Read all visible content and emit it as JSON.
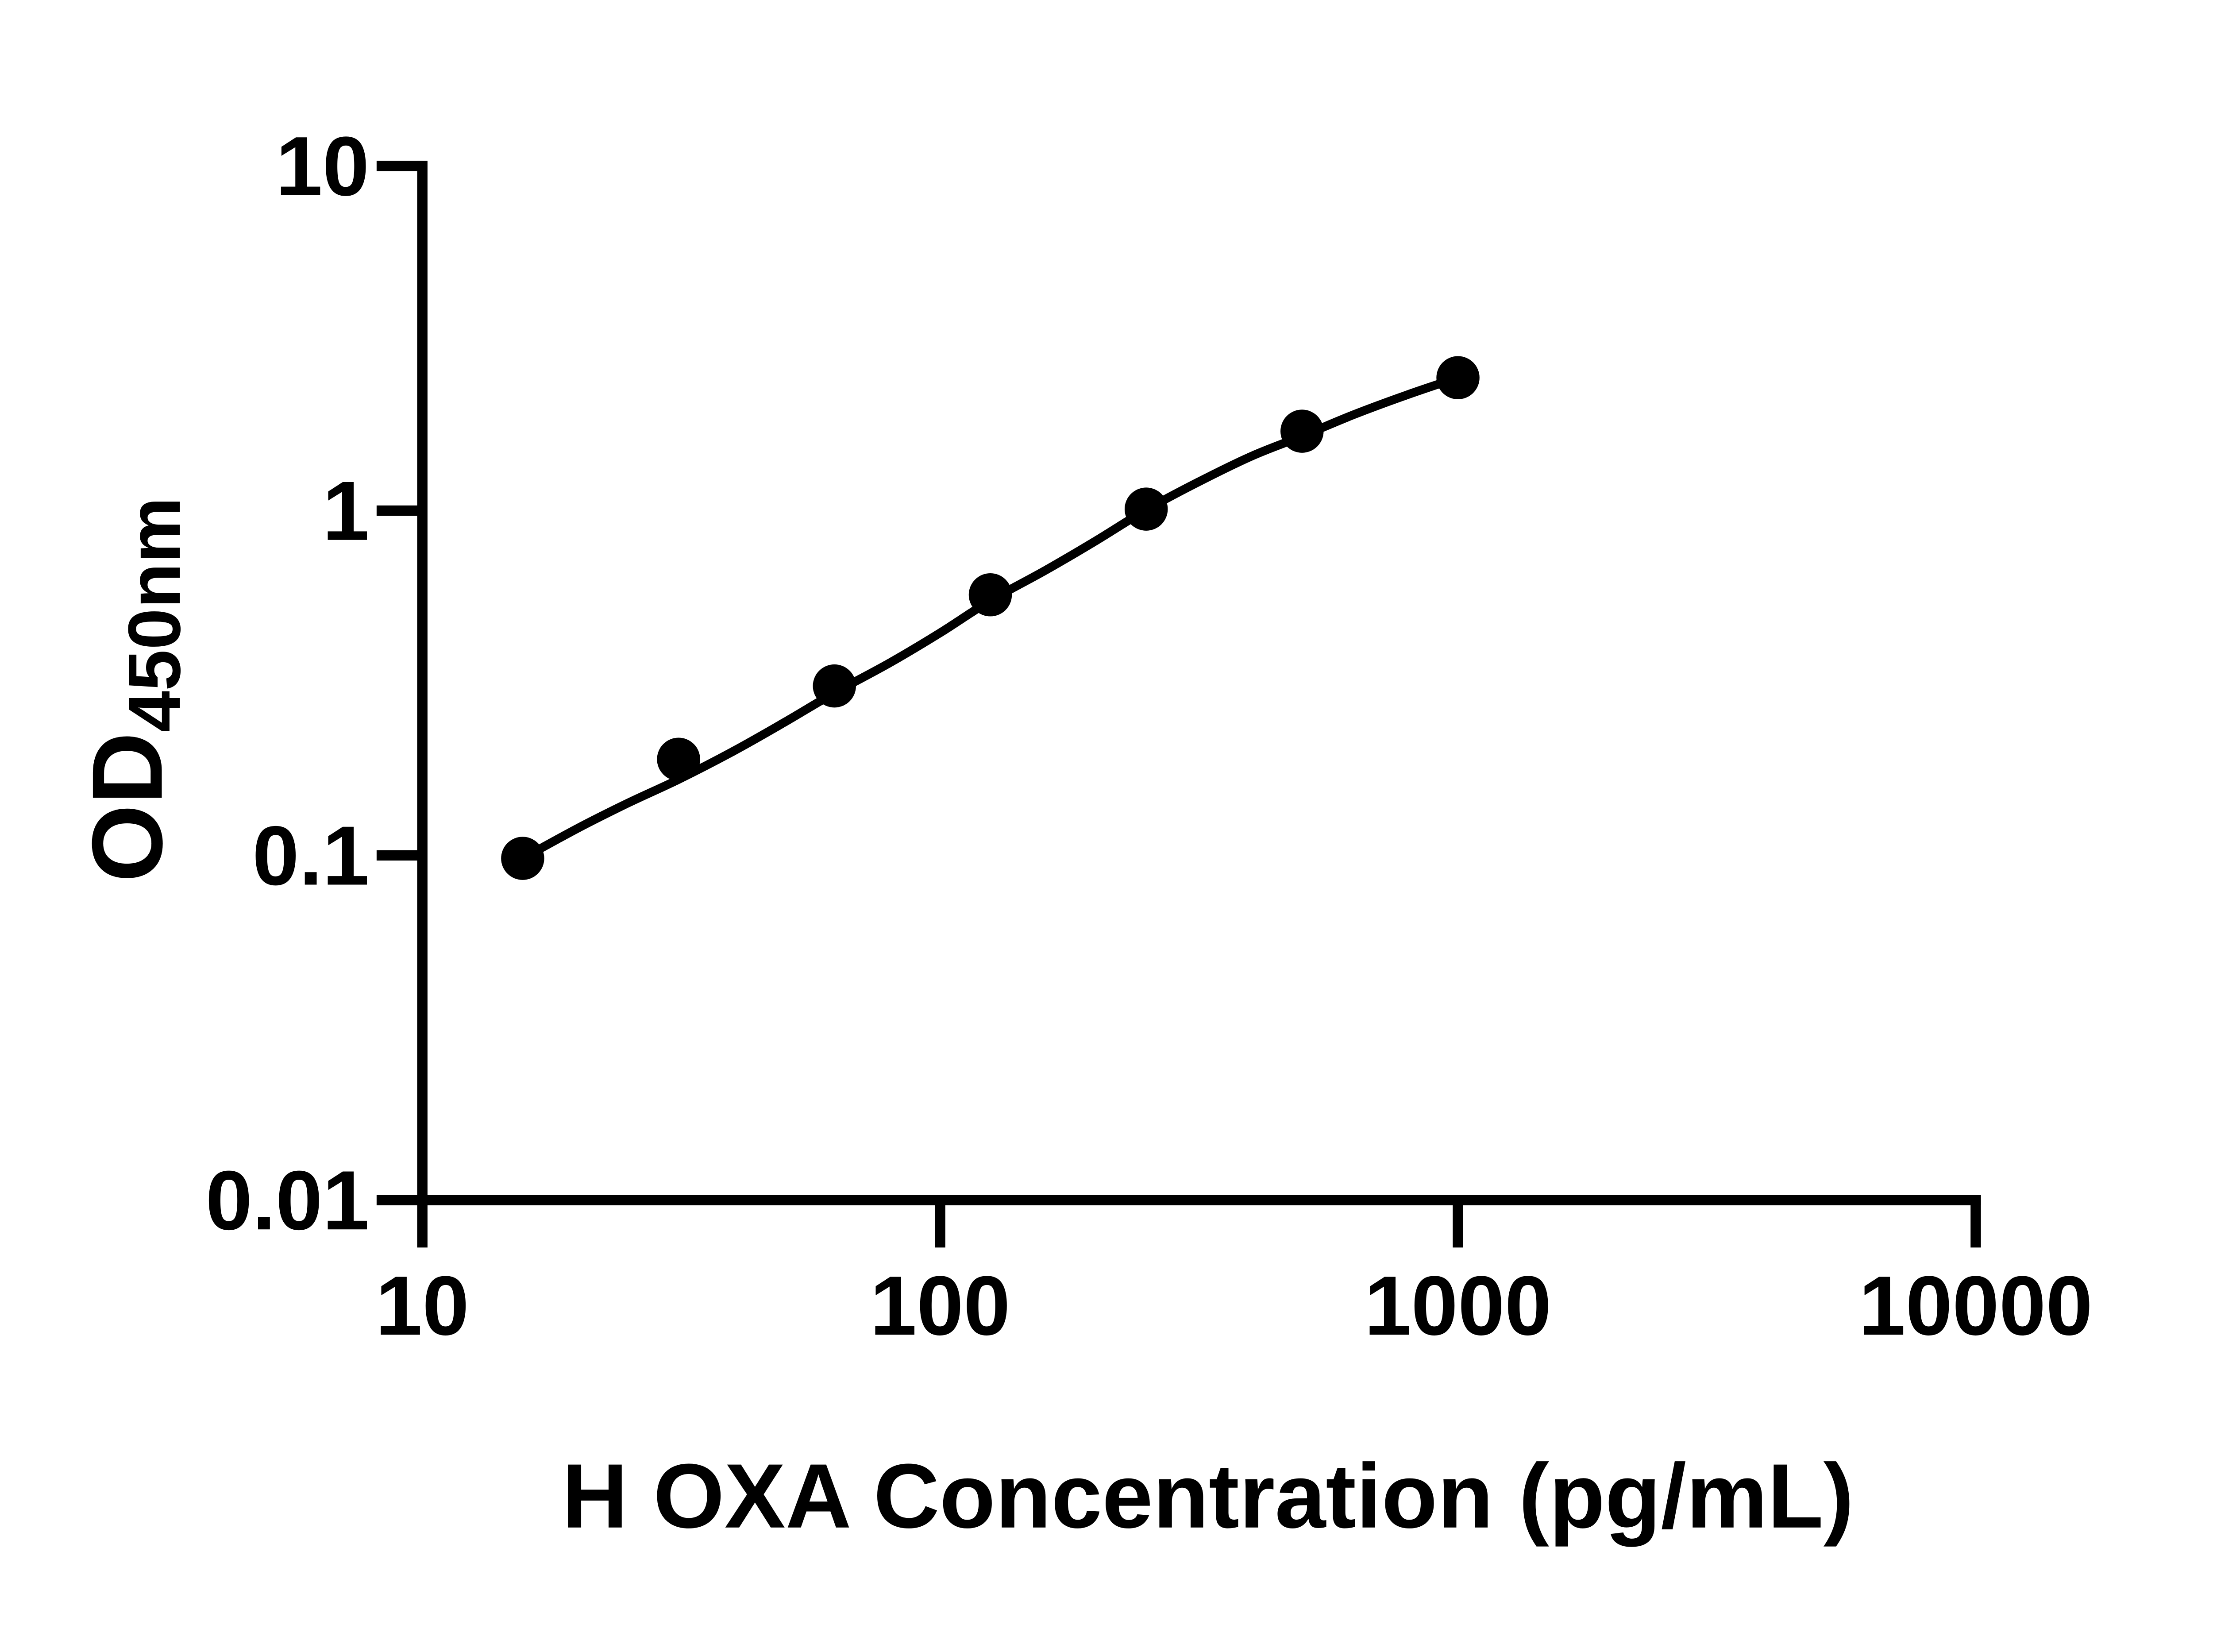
{
  "figure": {
    "background": "#ffffff",
    "ink_color": "#000000"
  },
  "chart_data": {
    "type": "scatter",
    "title": "",
    "xlabel": "H OXA Concentration (pg/mL)",
    "ylabel": {
      "main": "OD",
      "subscript": "450nm"
    },
    "x_scale": "log10",
    "y_scale": "log10",
    "xlim": [
      10,
      10000
    ],
    "ylim": [
      0.01,
      10
    ],
    "grid": false,
    "legend": null,
    "x_ticks": [
      {
        "value": 10,
        "label": "10"
      },
      {
        "value": 100,
        "label": "100"
      },
      {
        "value": 1000,
        "label": "1000"
      },
      {
        "value": 10000,
        "label": "10000"
      }
    ],
    "y_ticks": [
      {
        "value": 10,
        "label": "10"
      },
      {
        "value": 1,
        "label": "1"
      },
      {
        "value": 0.1,
        "label": "0.1"
      },
      {
        "value": 0.01,
        "label": "0.01"
      }
    ],
    "series": [
      {
        "name": "standard-points",
        "type": "scatter",
        "marker": "filled-circle",
        "color": "#000000",
        "points": [
          {
            "conc_pg_ml": 15.625,
            "od": 0.098
          },
          {
            "conc_pg_ml": 31.25,
            "od": 0.19
          },
          {
            "conc_pg_ml": 62.5,
            "od": 0.31
          },
          {
            "conc_pg_ml": 125,
            "od": 0.57
          },
          {
            "conc_pg_ml": 250,
            "od": 1.01
          },
          {
            "conc_pg_ml": 500,
            "od": 1.7
          },
          {
            "conc_pg_ml": 1000,
            "od": 2.43
          }
        ]
      },
      {
        "name": "fit-curve",
        "type": "line",
        "color": "#000000",
        "points": [
          [
            15.625,
            0.098
          ],
          [
            20,
            0.12
          ],
          [
            25,
            0.142
          ],
          [
            31.25,
            0.166
          ],
          [
            40,
            0.201
          ],
          [
            50,
            0.243
          ],
          [
            62.5,
            0.296
          ],
          [
            80,
            0.362
          ],
          [
            100,
            0.442
          ],
          [
            125,
            0.548
          ],
          [
            160,
            0.672
          ],
          [
            200,
            0.818
          ],
          [
            250,
            1.005
          ],
          [
            315,
            1.21
          ],
          [
            400,
            1.44
          ],
          [
            500,
            1.645
          ],
          [
            630,
            1.9
          ],
          [
            800,
            2.17
          ],
          [
            1000,
            2.43
          ]
        ]
      }
    ]
  }
}
